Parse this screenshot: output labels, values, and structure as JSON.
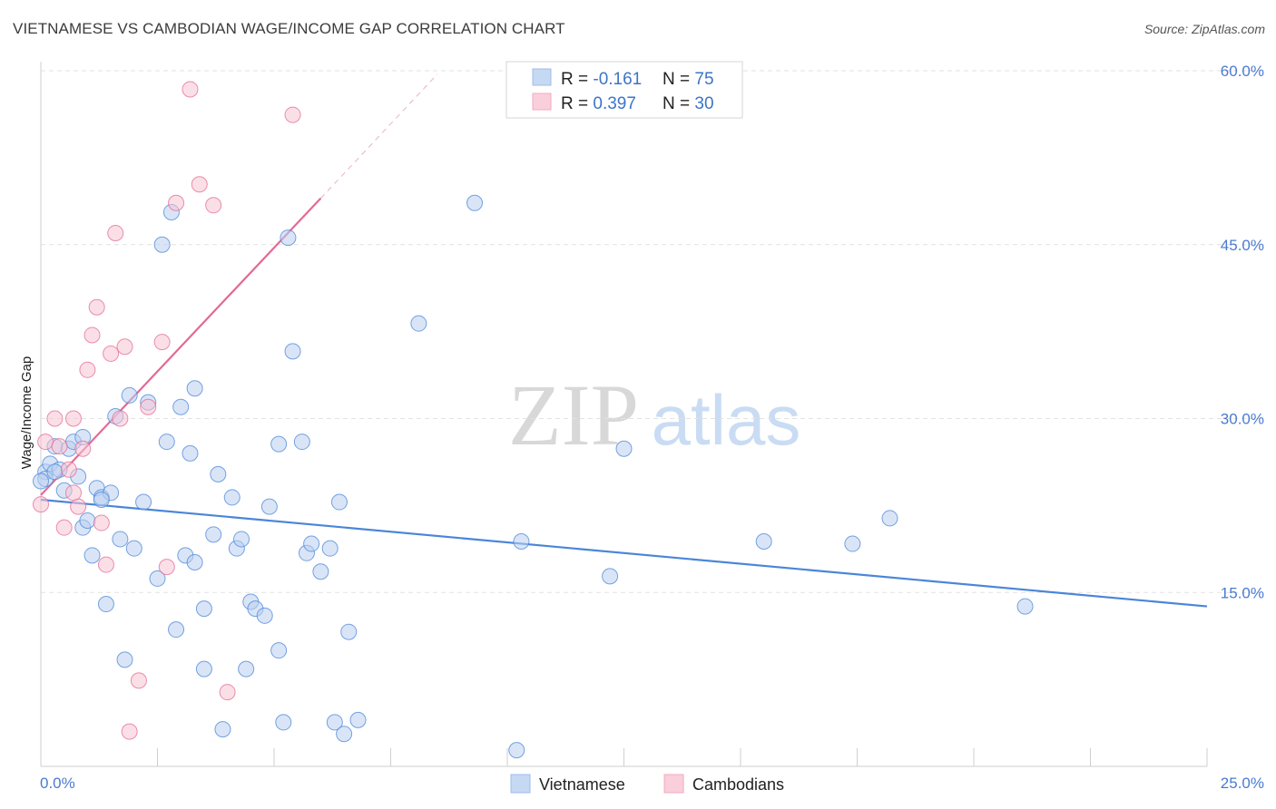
{
  "header": {
    "title": "VIETNAMESE VS CAMBODIAN WAGE/INCOME GAP CORRELATION CHART",
    "source": "Source: ZipAtlas.com"
  },
  "watermark": {
    "zip": "ZIP",
    "atlas": "atlas"
  },
  "legend": {
    "rows": [
      {
        "r_label": "R = ",
        "r_value": "-0.161",
        "n_label": "N = ",
        "n_value": "75",
        "color": "#9dbde8"
      },
      {
        "r_label": "R = ",
        "r_value": "0.397",
        "n_label": "N = ",
        "n_value": "30",
        "color": "#f4a9c0"
      }
    ]
  },
  "bottom_legend": [
    {
      "label": "Vietnamese",
      "color": "#9dbde8"
    },
    {
      "label": "Cambodians",
      "color": "#f4a9c0"
    }
  ],
  "chart_data": {
    "type": "scatter",
    "ylabel": "Wage/Income Gap",
    "xlim": [
      0,
      25
    ],
    "ylim": [
      0,
      60
    ],
    "x_tick_labels": [
      "0.0%",
      "25.0%"
    ],
    "y_ticks": [
      15,
      30,
      45,
      60
    ],
    "y_tick_labels": [
      "15.0%",
      "30.0%",
      "45.0%",
      "60.0%"
    ],
    "grid": true,
    "series": [
      {
        "name": "Vietnamese",
        "color": "#4a86d8",
        "fill": "#b9d0f0",
        "trend": {
          "x": [
            0,
            25
          ],
          "y": [
            23.0,
            13.8
          ]
        },
        "points": [
          [
            0.1,
            25.4
          ],
          [
            0.2,
            26.1
          ],
          [
            0.3,
            27.6
          ],
          [
            0.4,
            25.6
          ],
          [
            0.5,
            23.8
          ],
          [
            0.6,
            27.4
          ],
          [
            0.7,
            28.0
          ],
          [
            0.8,
            25.0
          ],
          [
            0.9,
            20.6
          ],
          [
            0.1,
            24.8
          ],
          [
            1.0,
            21.2
          ],
          [
            1.1,
            18.2
          ],
          [
            1.2,
            24.0
          ],
          [
            1.3,
            23.2
          ],
          [
            1.4,
            14.0
          ],
          [
            1.5,
            23.6
          ],
          [
            1.6,
            30.2
          ],
          [
            1.7,
            19.6
          ],
          [
            1.8,
            9.2
          ],
          [
            1.9,
            32.0
          ],
          [
            2.0,
            18.8
          ],
          [
            2.2,
            22.8
          ],
          [
            2.3,
            31.4
          ],
          [
            2.5,
            16.2
          ],
          [
            2.6,
            45.0
          ],
          [
            2.7,
            28.0
          ],
          [
            2.8,
            47.8
          ],
          [
            2.9,
            11.8
          ],
          [
            3.0,
            31.0
          ],
          [
            3.1,
            18.2
          ],
          [
            3.2,
            27.0
          ],
          [
            3.3,
            17.6
          ],
          [
            3.3,
            32.6
          ],
          [
            3.5,
            8.4
          ],
          [
            3.5,
            13.6
          ],
          [
            3.7,
            20.0
          ],
          [
            3.8,
            25.2
          ],
          [
            3.9,
            3.2
          ],
          [
            4.1,
            23.2
          ],
          [
            4.2,
            18.8
          ],
          [
            4.3,
            19.6
          ],
          [
            4.4,
            8.4
          ],
          [
            4.5,
            14.2
          ],
          [
            4.6,
            13.6
          ],
          [
            4.8,
            13.0
          ],
          [
            4.9,
            22.4
          ],
          [
            5.1,
            27.8
          ],
          [
            5.1,
            10.0
          ],
          [
            5.2,
            3.8
          ],
          [
            5.3,
            45.6
          ],
          [
            5.4,
            35.8
          ],
          [
            5.6,
            28.0
          ],
          [
            5.7,
            18.4
          ],
          [
            5.8,
            19.2
          ],
          [
            6.0,
            16.8
          ],
          [
            6.2,
            18.8
          ],
          [
            6.3,
            3.8
          ],
          [
            6.4,
            22.8
          ],
          [
            6.5,
            2.8
          ],
          [
            6.6,
            11.6
          ],
          [
            6.8,
            4.0
          ],
          [
            8.1,
            38.2
          ],
          [
            9.3,
            48.6
          ],
          [
            10.2,
            1.4
          ],
          [
            10.3,
            19.4
          ],
          [
            12.2,
            16.4
          ],
          [
            12.5,
            27.4
          ],
          [
            15.5,
            19.4
          ],
          [
            17.4,
            19.2
          ],
          [
            18.2,
            21.4
          ],
          [
            21.1,
            13.8
          ],
          [
            1.3,
            23.0
          ],
          [
            0.9,
            28.4
          ],
          [
            0.3,
            25.4
          ],
          [
            0.0,
            24.6
          ]
        ]
      },
      {
        "name": "Cambodians",
        "color": "#e36a95",
        "fill": "#f8c4d3",
        "trend": {
          "x": [
            0,
            6.0
          ],
          "y": [
            23.4,
            49.0
          ]
        },
        "trend_ext": {
          "x": [
            6.0,
            8.5
          ],
          "y": [
            49.0,
            59.7
          ]
        },
        "points": [
          [
            0.0,
            22.6
          ],
          [
            0.1,
            28.0
          ],
          [
            0.3,
            30.0
          ],
          [
            0.4,
            27.6
          ],
          [
            0.5,
            20.6
          ],
          [
            0.6,
            25.6
          ],
          [
            0.7,
            30.0
          ],
          [
            0.8,
            22.4
          ],
          [
            0.9,
            27.4
          ],
          [
            1.0,
            34.2
          ],
          [
            1.1,
            37.2
          ],
          [
            1.2,
            39.6
          ],
          [
            1.3,
            21.0
          ],
          [
            1.4,
            17.4
          ],
          [
            1.5,
            35.6
          ],
          [
            1.6,
            46.0
          ],
          [
            1.7,
            30.0
          ],
          [
            1.8,
            36.2
          ],
          [
            1.9,
            3.0
          ],
          [
            2.1,
            7.4
          ],
          [
            2.3,
            31.0
          ],
          [
            2.6,
            36.6
          ],
          [
            2.7,
            17.2
          ],
          [
            2.9,
            48.6
          ],
          [
            3.2,
            58.4
          ],
          [
            3.4,
            50.2
          ],
          [
            3.7,
            48.4
          ],
          [
            4.0,
            6.4
          ],
          [
            5.4,
            56.2
          ],
          [
            0.7,
            23.6
          ]
        ]
      }
    ]
  }
}
